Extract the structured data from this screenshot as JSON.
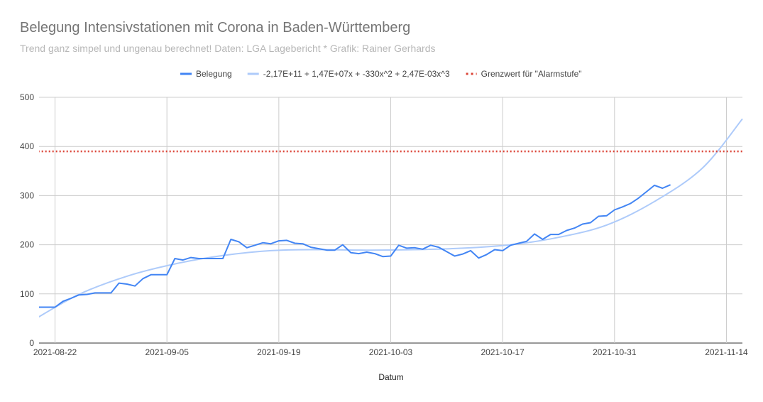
{
  "title": "Belegung Intensivstationen mit Corona in Baden-Württemberg",
  "subtitle": "Trend ganz simpel und ungenau berechnet! Daten: LGA Lagebericht * Grafik: Rainer Gerhards",
  "chart_data": {
    "type": "line",
    "xlabel": "Datum",
    "ylabel": "",
    "xlim": [
      "2021-08-20",
      "2021-11-16"
    ],
    "ylim": [
      0,
      500
    ],
    "x_ticks": [
      "2021-08-22",
      "2021-09-05",
      "2021-09-19",
      "2021-10-03",
      "2021-10-17",
      "2021-10-31",
      "2021-11-14"
    ],
    "y_ticks": [
      0,
      100,
      200,
      300,
      400,
      500
    ],
    "grid": true,
    "legend_position": "top",
    "series": [
      {
        "name": "Belegung",
        "color": "#4285f4",
        "style": "solid",
        "points": [
          [
            "2021-08-20",
            73
          ],
          [
            "2021-08-21",
            73
          ],
          [
            "2021-08-22",
            73
          ],
          [
            "2021-08-23",
            85
          ],
          [
            "2021-08-24",
            91
          ],
          [
            "2021-08-25",
            98
          ],
          [
            "2021-08-26",
            99
          ],
          [
            "2021-08-27",
            102
          ],
          [
            "2021-08-28",
            102
          ],
          [
            "2021-08-29",
            102
          ],
          [
            "2021-08-30",
            122
          ],
          [
            "2021-08-31",
            120
          ],
          [
            "2021-09-01",
            116
          ],
          [
            "2021-09-02",
            131
          ],
          [
            "2021-09-03",
            139
          ],
          [
            "2021-09-04",
            139
          ],
          [
            "2021-09-05",
            139
          ],
          [
            "2021-09-06",
            172
          ],
          [
            "2021-09-07",
            169
          ],
          [
            "2021-09-08",
            174
          ],
          [
            "2021-09-09",
            172
          ],
          [
            "2021-09-10",
            172
          ],
          [
            "2021-09-11",
            172
          ],
          [
            "2021-09-12",
            172
          ],
          [
            "2021-09-13",
            211
          ],
          [
            "2021-09-14",
            206
          ],
          [
            "2021-09-15",
            194
          ],
          [
            "2021-09-16",
            199
          ],
          [
            "2021-09-17",
            204
          ],
          [
            "2021-09-18",
            202
          ],
          [
            "2021-09-19",
            208
          ],
          [
            "2021-09-20",
            209
          ],
          [
            "2021-09-21",
            203
          ],
          [
            "2021-09-22",
            202
          ],
          [
            "2021-09-23",
            195
          ],
          [
            "2021-09-24",
            192
          ],
          [
            "2021-09-25",
            189
          ],
          [
            "2021-09-26",
            189
          ],
          [
            "2021-09-27",
            200
          ],
          [
            "2021-09-28",
            184
          ],
          [
            "2021-09-29",
            182
          ],
          [
            "2021-09-30",
            185
          ],
          [
            "2021-10-01",
            182
          ],
          [
            "2021-10-02",
            176
          ],
          [
            "2021-10-03",
            177
          ],
          [
            "2021-10-04",
            199
          ],
          [
            "2021-10-05",
            193
          ],
          [
            "2021-10-06",
            194
          ],
          [
            "2021-10-07",
            191
          ],
          [
            "2021-10-08",
            199
          ],
          [
            "2021-10-09",
            195
          ],
          [
            "2021-10-10",
            186
          ],
          [
            "2021-10-11",
            177
          ],
          [
            "2021-10-12",
            181
          ],
          [
            "2021-10-13",
            188
          ],
          [
            "2021-10-14",
            173
          ],
          [
            "2021-10-15",
            180
          ],
          [
            "2021-10-16",
            190
          ],
          [
            "2021-10-17",
            188
          ],
          [
            "2021-10-18",
            199
          ],
          [
            "2021-10-19",
            203
          ],
          [
            "2021-10-20",
            207
          ],
          [
            "2021-10-21",
            222
          ],
          [
            "2021-10-22",
            211
          ],
          [
            "2021-10-23",
            221
          ],
          [
            "2021-10-24",
            221
          ],
          [
            "2021-10-25",
            229
          ],
          [
            "2021-10-26",
            234
          ],
          [
            "2021-10-27",
            242
          ],
          [
            "2021-10-28",
            245
          ],
          [
            "2021-10-29",
            258
          ],
          [
            "2021-10-30",
            259
          ],
          [
            "2021-10-31",
            271
          ],
          [
            "2021-11-01",
            277
          ],
          [
            "2021-11-02",
            284
          ],
          [
            "2021-11-03",
            295
          ],
          [
            "2021-11-04",
            308
          ],
          [
            "2021-11-05",
            321
          ],
          [
            "2021-11-06",
            315
          ],
          [
            "2021-11-07",
            322
          ]
        ]
      },
      {
        "name": "-2,17E+11 + 1,47E+07x + -330x^2 + 2,47E-03x^3",
        "color": "#aecbfa",
        "style": "smooth",
        "points": [
          [
            "2021-08-19",
            44
          ],
          [
            "2021-08-25",
            99
          ],
          [
            "2021-08-31",
            136
          ],
          [
            "2021-09-06",
            161
          ],
          [
            "2021-09-12",
            178
          ],
          [
            "2021-09-18",
            188
          ],
          [
            "2021-09-24",
            190
          ],
          [
            "2021-09-30",
            189
          ],
          [
            "2021-10-06",
            190
          ],
          [
            "2021-10-12",
            193
          ],
          [
            "2021-10-18",
            200
          ],
          [
            "2021-10-24",
            215
          ],
          [
            "2021-10-30",
            240
          ],
          [
            "2021-11-05",
            288
          ],
          [
            "2021-11-11",
            356
          ],
          [
            "2021-11-16",
            456
          ]
        ]
      },
      {
        "name": "Grenzwert für \"Alarmstufe\"",
        "color": "#db4437",
        "style": "dotted",
        "points": [
          [
            "2021-08-19",
            390
          ],
          [
            "2021-11-16",
            390
          ]
        ]
      }
    ]
  }
}
